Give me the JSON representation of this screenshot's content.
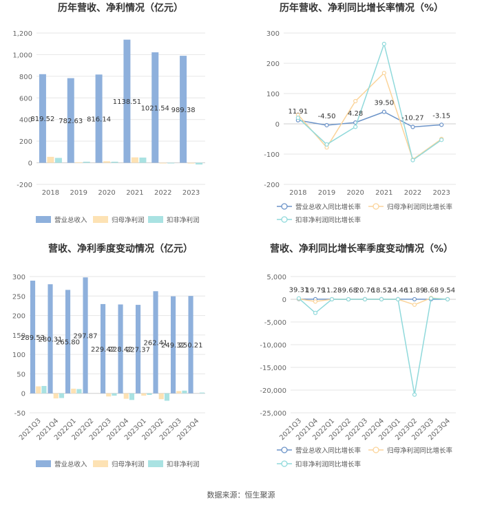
{
  "source": "数据来源：恒生聚源",
  "chart_data": [
    {
      "type": "bar",
      "title": "历年营收、净利情况（亿元）",
      "categories": [
        "2018",
        "2019",
        "2020",
        "2021",
        "2022",
        "2023"
      ],
      "yticks": [
        -200,
        0,
        200,
        400,
        600,
        800,
        1000,
        1200
      ],
      "ytick_labels": [
        "-200",
        "0",
        "200",
        "400",
        "600",
        "800",
        "1,000",
        "1,200"
      ],
      "ylim": [
        -200,
        1200
      ],
      "legend_position": "bottom",
      "series": [
        {
          "name": "营业总收入",
          "color": "#8eb0dc",
          "values": [
            819.52,
            782.63,
            816.14,
            1138.51,
            1021.54,
            989.38
          ],
          "labels": [
            "819.52",
            "782.63",
            "816.14",
            "1138.51",
            "1021.54",
            "989.38"
          ]
        },
        {
          "name": "归母净利润",
          "color": "#fde2b4",
          "values": [
            55,
            5,
            14,
            50,
            -3,
            -7
          ]
        },
        {
          "name": "扣非净利润",
          "color": "#a9e2e2",
          "values": [
            45,
            10,
            10,
            48,
            -6,
            -16
          ]
        }
      ]
    },
    {
      "type": "line",
      "title": "历年营收、净利同比增长率情况（%）",
      "categories": [
        "2018",
        "2019",
        "2020",
        "2021",
        "2022",
        "2023"
      ],
      "yticks": [
        -200,
        -100,
        0,
        100,
        200,
        300
      ],
      "ytick_labels": [
        "-200",
        "-100",
        "0",
        "100",
        "200",
        "300"
      ],
      "ylim": [
        -200,
        300
      ],
      "legend_position": "bottom",
      "series": [
        {
          "name": "营业总收入同比增长率",
          "color": "#6b93c8",
          "values": [
            11.91,
            -4.5,
            4.28,
            39.5,
            -10.27,
            -3.15
          ],
          "labels": [
            "11.91",
            "-4.50",
            "4.28",
            "39.50",
            "-10.27",
            "-3.15"
          ]
        },
        {
          "name": "归母净利润同比增长率",
          "color": "#fbd49a",
          "values": [
            30,
            -78,
            75,
            168,
            -118,
            -50
          ]
        },
        {
          "name": "扣非净利润同比增长率",
          "color": "#8fd9db",
          "values": [
            20,
            -68,
            -10,
            264,
            -120,
            -53
          ]
        }
      ]
    },
    {
      "type": "bar",
      "title": "营收、净利季度变动情况（亿元）",
      "categories": [
        "2021Q3",
        "2021Q4",
        "2022Q1",
        "2022Q2",
        "2022Q3",
        "2022Q4",
        "2023Q1",
        "2023Q2",
        "2023Q3",
        "2023Q4"
      ],
      "yticks": [
        -50,
        0,
        50,
        100,
        150,
        200,
        250,
        300
      ],
      "ytick_labels": [
        "-50",
        "0",
        "50",
        "100",
        "150",
        "200",
        "250",
        "300"
      ],
      "ylim": [
        -50,
        300
      ],
      "legend_position": "bottom",
      "series": [
        {
          "name": "营业总收入",
          "color": "#8eb0dc",
          "values": [
            289.53,
            280.31,
            265.8,
            297.87,
            229.42,
            228.42,
            227.37,
            262.41,
            249.32,
            250.21
          ],
          "labels": [
            "289.53",
            "280.31",
            "265.80",
            "297.87",
            "229.42",
            "228.42",
            "227.37",
            "262.41",
            "249.32",
            "250.21"
          ]
        },
        {
          "name": "归母净利润",
          "color": "#fde2b4",
          "values": [
            18,
            -13,
            12,
            0,
            -8,
            -14,
            -6,
            -15,
            6,
            0
          ]
        },
        {
          "name": "扣非净利润",
          "color": "#a9e2e2",
          "values": [
            19,
            -12,
            11,
            0,
            -6,
            -17,
            -4,
            -19,
            7,
            2
          ]
        }
      ]
    },
    {
      "type": "line",
      "title": "营收、净利同比增长率季度变动情况（%）",
      "categories": [
        "2021Q3",
        "2021Q4",
        "2022Q1",
        "2022Q2",
        "2022Q3",
        "2022Q4",
        "2023Q1",
        "2023Q2",
        "2023Q3",
        "2023Q4"
      ],
      "yticks": [
        -25000,
        -20000,
        -15000,
        -10000,
        -5000,
        0,
        5000
      ],
      "ytick_labels": [
        "-25,000",
        "-20,000",
        "-15,000",
        "-10,000",
        "-5,000",
        "0",
        "5,000"
      ],
      "ylim": [
        -25000,
        5000
      ],
      "legend_position": "bottom",
      "series": [
        {
          "name": "营业总收入同比增长率",
          "color": "#6b93c8",
          "values": [
            39.31,
            19.79,
            11.28,
            -9.68,
            20.76,
            18.52,
            14.46,
            11.89,
            8.68,
            9.54
          ],
          "labels": [
            "39.31",
            "19.79",
            "11.28",
            "-9.68",
            "20.76",
            "18.52",
            "14.46",
            "11.89",
            "8.68",
            "9.54"
          ]
        },
        {
          "name": "归母净利润同比增长率",
          "color": "#fbd49a",
          "values": [
            100,
            -500,
            0,
            0,
            0,
            0,
            0,
            -1200,
            300,
            0
          ]
        },
        {
          "name": "扣非净利润同比增长率",
          "color": "#8fd9db",
          "values": [
            200,
            -3000,
            0,
            0,
            0,
            0,
            0,
            -21000,
            200,
            0
          ]
        }
      ]
    }
  ]
}
